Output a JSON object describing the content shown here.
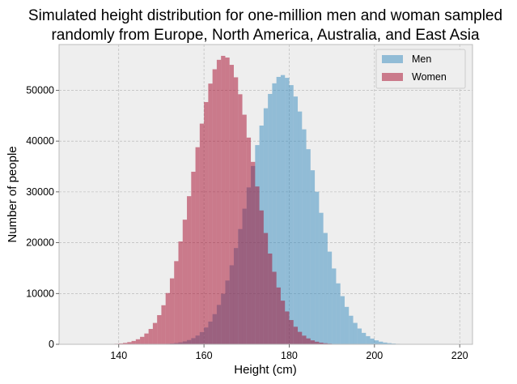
{
  "chart_data": {
    "type": "histogram",
    "title": "Simulated height distribution for one-million men and woman sampled randomly from Europe, North America, Australia, and East Asia",
    "title_lines": [
      "Simulated height distribution for one-million men and woman sampled",
      "randomly from Europe, North America, Australia, and East Asia"
    ],
    "xlabel": "Height (cm)",
    "ylabel": "Number of people",
    "xlim": [
      126,
      223
    ],
    "ylim": [
      0,
      59000
    ],
    "xticks": [
      140,
      160,
      180,
      200,
      220
    ],
    "yticks": [
      0,
      10000,
      20000,
      30000,
      40000,
      50000
    ],
    "grid": true,
    "legend_position": "top-right",
    "series": [
      {
        "name": "Men",
        "color": "#348abd",
        "alpha": 0.5,
        "mean": 178.4,
        "sd": 7.6,
        "peak": 53000,
        "range": [
          150,
          220
        ]
      },
      {
        "name": "Women",
        "color": "#a60628",
        "alpha": 0.5,
        "mean": 164.7,
        "sd": 7.1,
        "peak": 56800,
        "range": [
          131,
          198
        ]
      }
    ]
  }
}
